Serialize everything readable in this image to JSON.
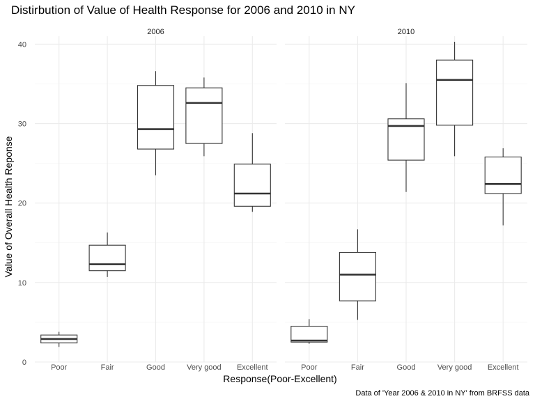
{
  "chart_data": {
    "type": "boxplot",
    "title": "Distirbution of Value of Health Response for 2006 and 2010 in NY",
    "xlabel": "Response(Poor-Excellent)",
    "ylabel": "Value of Overall Health Reponse",
    "caption": "Data of 'Year 2006 & 2010 in NY' from BRFSS data",
    "categories": [
      "Poor",
      "Fair",
      "Good",
      "Very good",
      "Excellent"
    ],
    "ylim": [
      0,
      41
    ],
    "yticks": [
      0,
      10,
      20,
      30,
      40
    ],
    "grid": true,
    "facets": [
      {
        "label": "2006",
        "boxes": [
          {
            "category": "Poor",
            "min": 1.9,
            "q1": 2.4,
            "median": 2.9,
            "q3": 3.4,
            "max": 3.8
          },
          {
            "category": "Fair",
            "min": 10.7,
            "q1": 11.5,
            "median": 12.3,
            "q3": 14.7,
            "max": 16.3
          },
          {
            "category": "Good",
            "min": 23.5,
            "q1": 26.8,
            "median": 29.3,
            "q3": 34.8,
            "max": 36.6
          },
          {
            "category": "Very good",
            "min": 25.9,
            "q1": 27.5,
            "median": 32.6,
            "q3": 34.5,
            "max": 35.8
          },
          {
            "category": "Excellent",
            "min": 18.9,
            "q1": 19.6,
            "median": 21.2,
            "q3": 24.9,
            "max": 28.8
          }
        ]
      },
      {
        "label": "2010",
        "boxes": [
          {
            "category": "Poor",
            "min": 2.3,
            "q1": 2.5,
            "median": 2.7,
            "q3": 4.5,
            "max": 5.4
          },
          {
            "category": "Fair",
            "min": 5.3,
            "q1": 7.7,
            "median": 11.0,
            "q3": 13.8,
            "max": 16.7
          },
          {
            "category": "Good",
            "min": 21.4,
            "q1": 25.4,
            "median": 29.7,
            "q3": 30.6,
            "max": 35.1
          },
          {
            "category": "Very good",
            "min": 25.9,
            "q1": 29.8,
            "median": 35.5,
            "q3": 38.0,
            "max": 40.3
          },
          {
            "category": "Excellent",
            "min": 17.2,
            "q1": 21.2,
            "median": 22.4,
            "q3": 25.8,
            "max": 26.9
          }
        ]
      }
    ]
  }
}
